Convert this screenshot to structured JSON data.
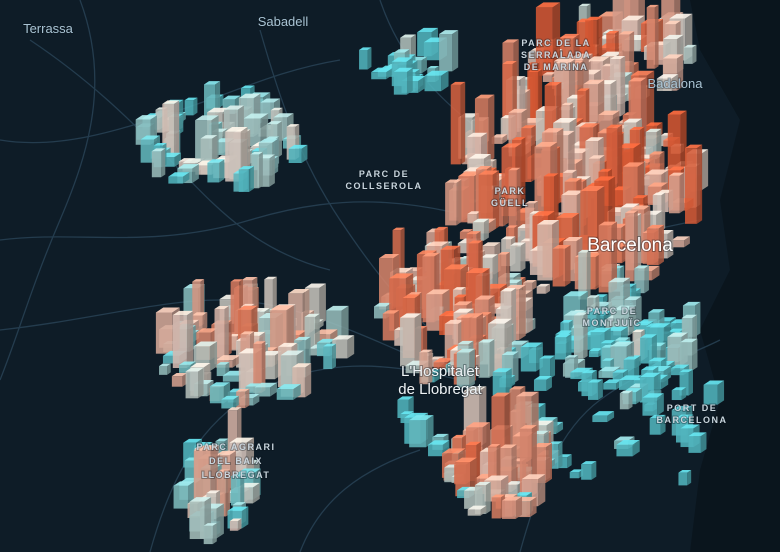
{
  "map": {
    "labels": {
      "terrassa": "Terrassa",
      "sabadell": "Sabadell",
      "serralada": [
        "PARC DE LA",
        "SERRALADA",
        "DE MARINA"
      ],
      "badalona": "Badalona",
      "collserola": [
        "PARC DE",
        "COLLSEROLA"
      ],
      "guell": [
        "PARK",
        "GÜELL"
      ],
      "barcelona": "Barcelona",
      "montjuic": [
        "PARC DE",
        "MONTJUÏC"
      ],
      "hospitalet": [
        "L'Hospitalet",
        "de Llobregat"
      ],
      "agrari": [
        "PARC AGRARI",
        "DEL BAIX",
        "LLOBREGAT"
      ],
      "port": [
        "PORT DE",
        "BARCELONA"
      ]
    }
  }
}
